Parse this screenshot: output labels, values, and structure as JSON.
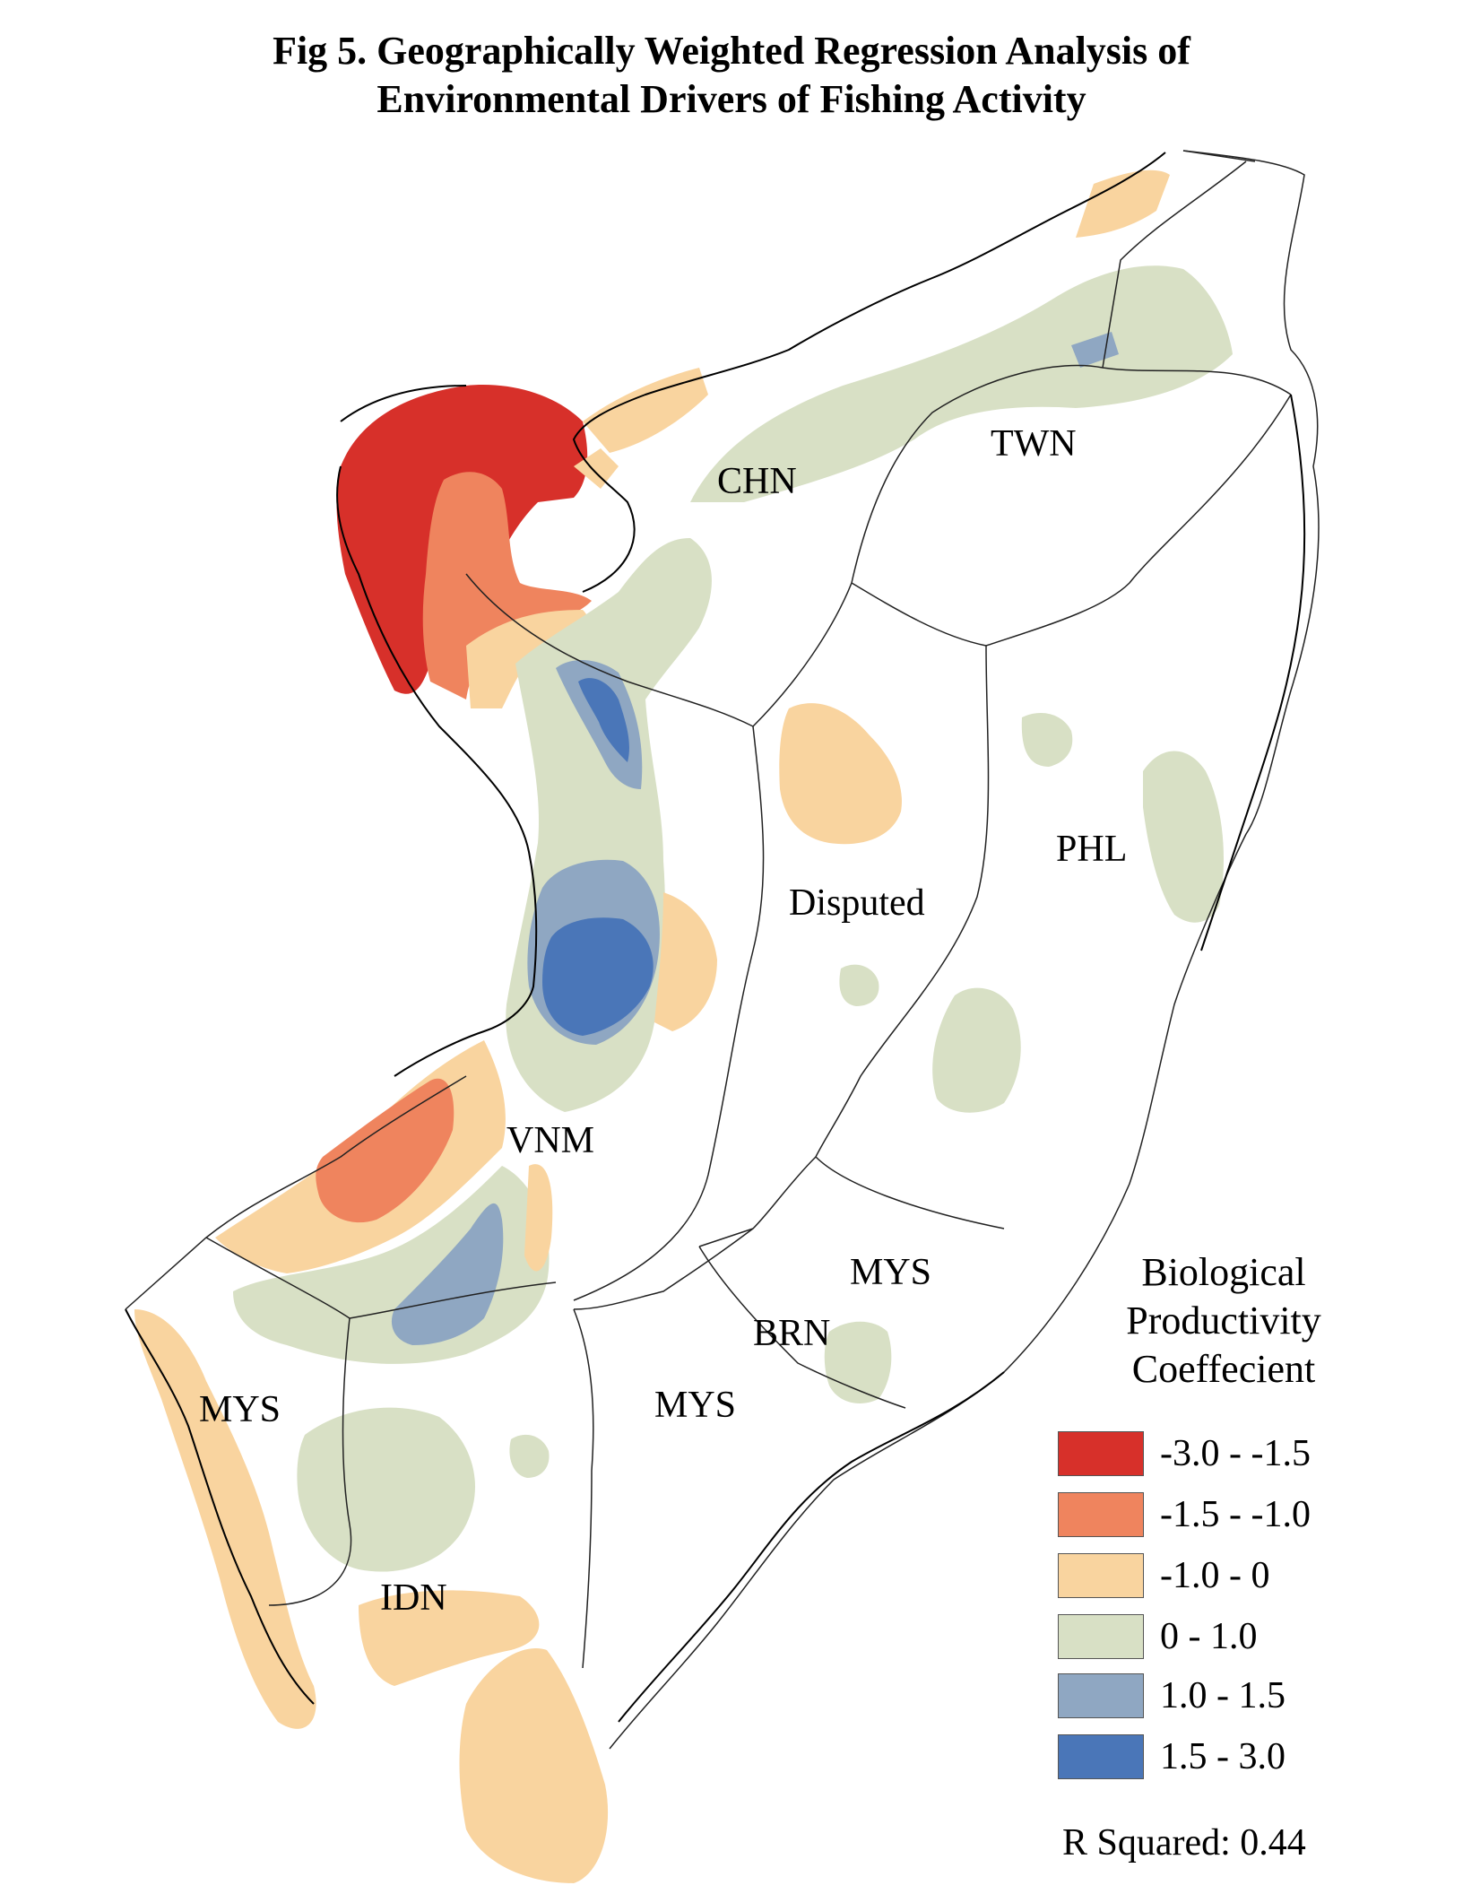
{
  "title_lines": [
    "Fig 5. Geographically Weighted Regression Analysis of",
    "Environmental Drivers of Fishing Activity"
  ],
  "country_labels": {
    "chn": "CHN",
    "twn": "TWN",
    "phl": "PHL",
    "disputed": "Disputed",
    "vnm": "VNM",
    "mys_east": "MYS",
    "brn": "BRN",
    "mys_central": "MYS",
    "mys_west": "MYS",
    "idn": "IDN"
  },
  "legend": {
    "title_lines": [
      "Biological",
      "Productivity",
      "Coeffecient"
    ],
    "classes": [
      {
        "label": "-3.0 - -1.5",
        "color": "#d7302a"
      },
      {
        "label": "-1.5 - -1.0",
        "color": "#ef845e"
      },
      {
        "label": "-1.0 - 0",
        "color": "#f9d49f"
      },
      {
        "label": "0 - 1.0",
        "color": "#d8e0c5"
      },
      {
        "label": "1.0 - 1.5",
        "color": "#8fa7c2"
      },
      {
        "label": "1.5 - 3.0",
        "color": "#4a76b8"
      }
    ]
  },
  "r_squared": "R Squared: 0.44"
}
